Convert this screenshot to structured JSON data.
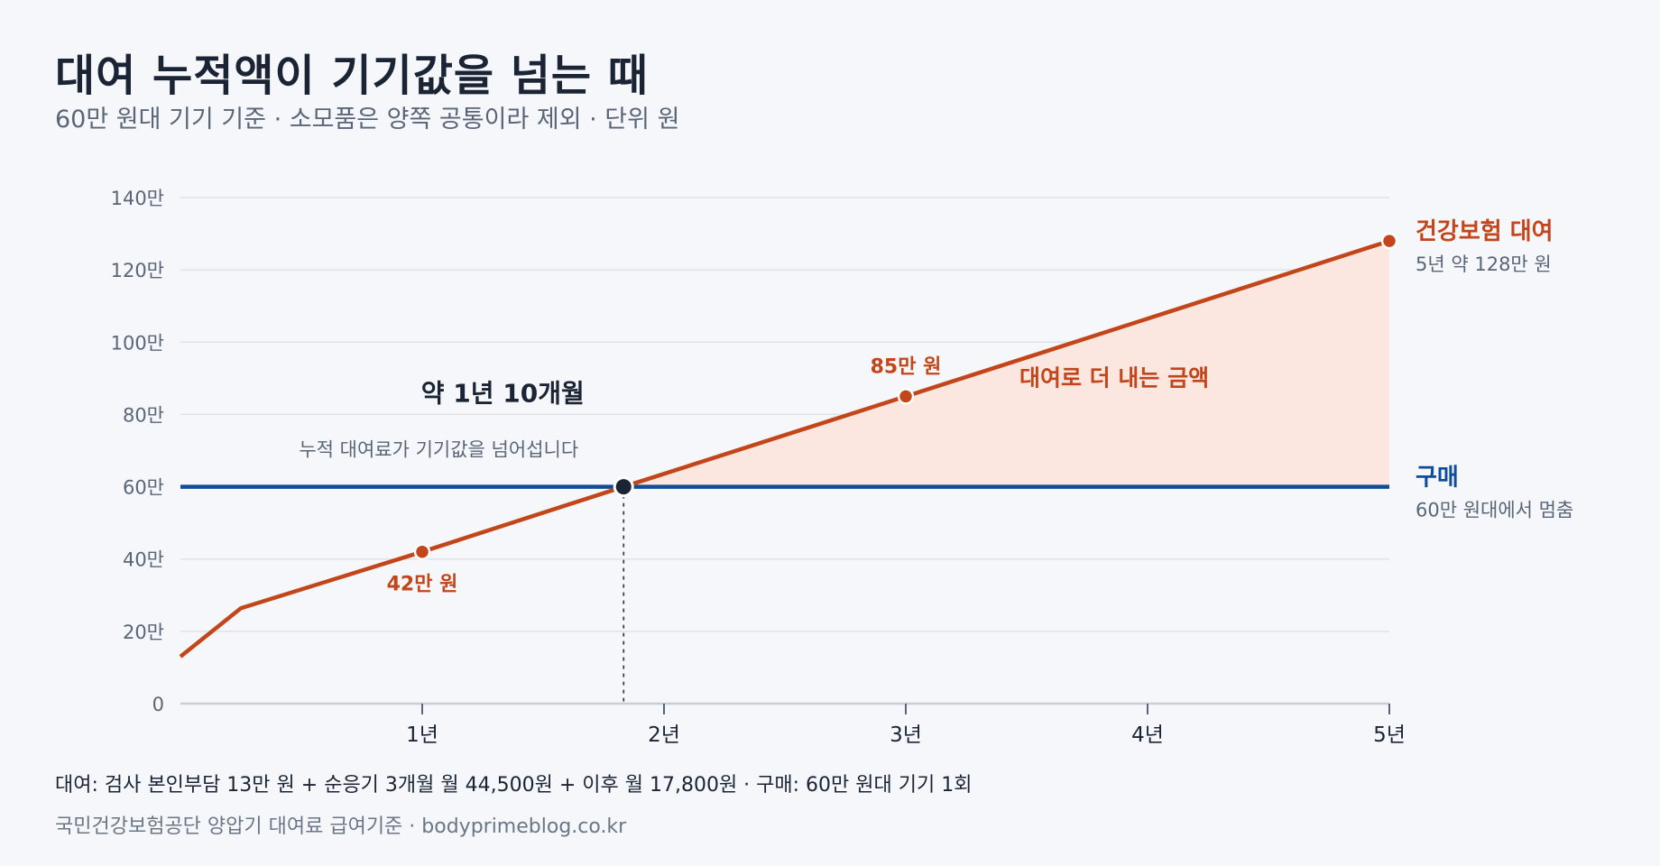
{
  "header": {
    "title": "대여 누적액이 기기값을 넘는 때",
    "subtitle": "60만 원대 기기 기준 · 소모품은 양쪽 공통이라 제외 · 단위 원"
  },
  "footer": {
    "note": "대여: 검사 본인부담 13만 원 + 순응기 3개월 월 44,500원 + 이후 월 17,800원 · 구매: 60만 원대 기기 1회",
    "source": "국민건강보험공단 양압기 대여료 급여기준 · bodyprimeblog.co.kr"
  },
  "colors": {
    "rental": "#c2461a",
    "purchase": "#0f4c9c",
    "fill": "#fce6de",
    "grid": "#dfe3e9",
    "axis": "#c8ced7",
    "crossing": "#1b2434"
  },
  "chart_data": {
    "type": "line",
    "x_unit": "년",
    "y_unit": "만 원",
    "xlim": [
      0,
      5
    ],
    "ylim": [
      0,
      140
    ],
    "x_ticks": [
      1,
      2,
      3,
      4,
      5
    ],
    "x_tick_labels": [
      "1년",
      "2년",
      "3년",
      "4년",
      "5년"
    ],
    "y_ticks": [
      0,
      20,
      40,
      60,
      80,
      100,
      120,
      140
    ],
    "y_tick_labels": [
      "0",
      "20만",
      "40만",
      "60만",
      "80만",
      "100만",
      "120만",
      "140만"
    ],
    "grid": true,
    "series": [
      {
        "name": "건강보험 대여",
        "sublabel": "5년 약 128만 원",
        "x": [
          0,
          0.25,
          1,
          1.833,
          3,
          5
        ],
        "y": [
          13,
          26.4,
          42,
          60,
          85,
          128
        ]
      },
      {
        "name": "구매",
        "sublabel": "60만 원대에서 멈춤",
        "x": [
          0,
          5
        ],
        "y": [
          60,
          60
        ]
      }
    ],
    "point_labels": [
      {
        "x": 1,
        "y": 42,
        "text": "42만 원",
        "position": "below"
      },
      {
        "x": 3,
        "y": 85,
        "text": "85만 원",
        "position": "above"
      }
    ],
    "crossing": {
      "x": 1.833,
      "y": 60,
      "title": "약 1년 10개월",
      "text": "누적 대여료가 기기값을 넘어섭니다"
    },
    "area_label": "대여로 더 내는 금액"
  }
}
